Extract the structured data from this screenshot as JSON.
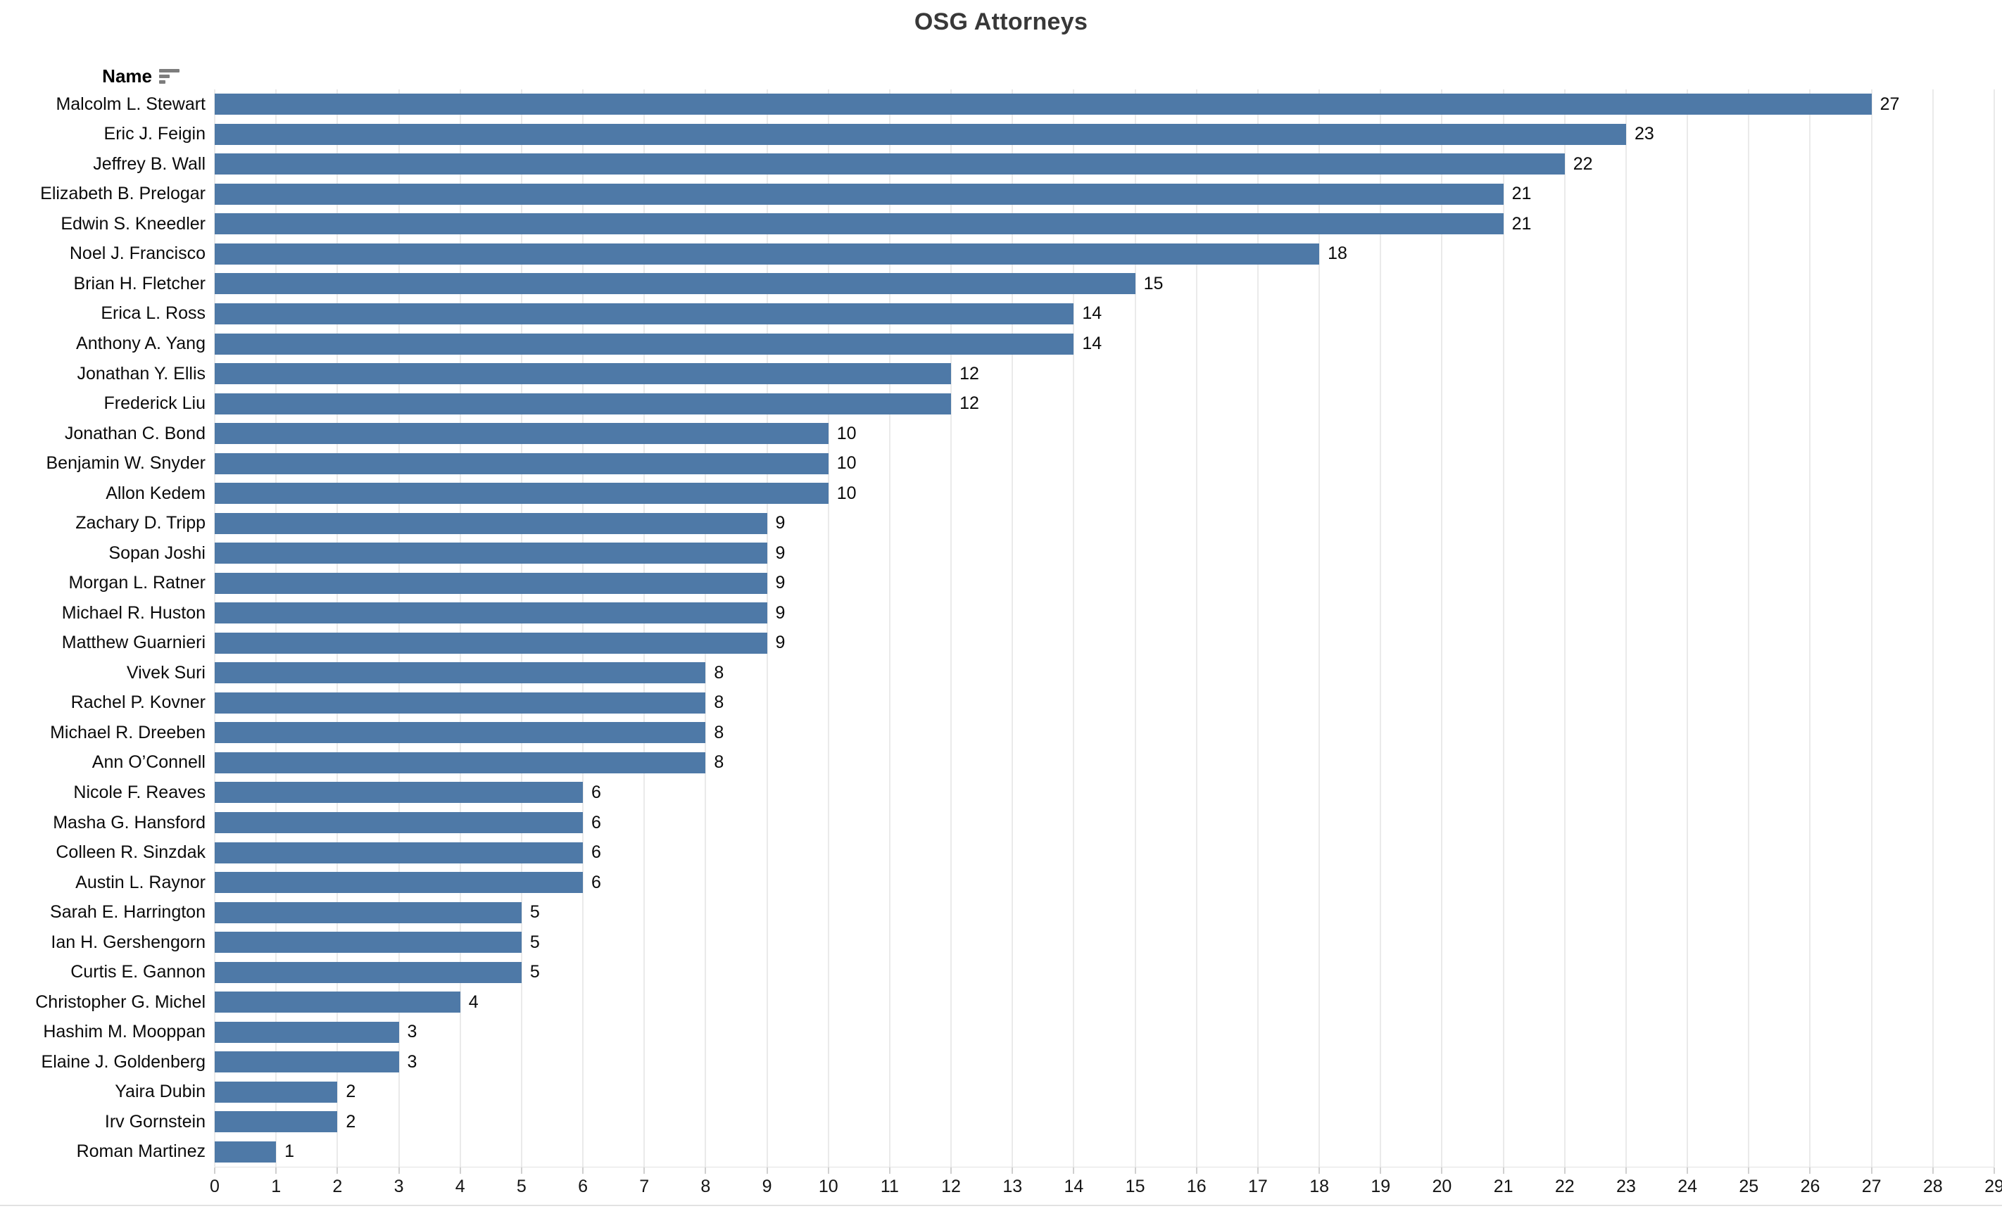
{
  "title": "OSG Attorneys",
  "header": {
    "name_label": "Name",
    "sort_icon": "sort-descending-icon"
  },
  "colors": {
    "bar": "#4e79a7",
    "gridline": "#eaeaea",
    "tick": "#cfcfcf",
    "title_text": "#383838",
    "label_text": "#0b0b0b",
    "divider": "#e2e2e2"
  },
  "chart_data": {
    "type": "bar",
    "orientation": "horizontal",
    "title": "OSG Attorneys",
    "xlabel": "",
    "ylabel": "Name",
    "grid": true,
    "value_labels": true,
    "legend": "none",
    "xlim": [
      0,
      29
    ],
    "x_ticks": [
      0,
      1,
      2,
      3,
      4,
      5,
      6,
      7,
      8,
      9,
      10,
      11,
      12,
      13,
      14,
      15,
      16,
      17,
      18,
      19,
      20,
      21,
      22,
      23,
      24,
      25,
      26,
      27,
      28,
      29
    ],
    "bar_color": "#4e79a7",
    "categories": [
      "Malcolm L. Stewart",
      "Eric J. Feigin",
      "Jeffrey B. Wall",
      "Elizabeth B. Prelogar",
      "Edwin S. Kneedler",
      "Noel J. Francisco",
      "Brian H. Fletcher",
      "Erica L. Ross",
      "Anthony A. Yang",
      "Jonathan Y. Ellis",
      "Frederick Liu",
      "Jonathan C. Bond",
      "Benjamin W. Snyder",
      "Allon Kedem",
      "Zachary D. Tripp",
      "Sopan Joshi",
      "Morgan L. Ratner",
      "Michael R. Huston",
      "Matthew Guarnieri",
      "Vivek Suri",
      "Rachel P. Kovner",
      "Michael R. Dreeben",
      "Ann O’Connell",
      "Nicole F. Reaves",
      "Masha G. Hansford",
      "Colleen R. Sinzdak",
      "Austin L. Raynor",
      "Sarah E. Harrington",
      "Ian H. Gershengorn",
      "Curtis E. Gannon",
      "Christopher G. Michel",
      "Hashim M. Mooppan",
      "Elaine J. Goldenberg",
      "Yaira Dubin",
      "Irv Gornstein",
      "Roman Martinez"
    ],
    "values": [
      27,
      23,
      22,
      21,
      21,
      18,
      15,
      14,
      14,
      12,
      12,
      10,
      10,
      10,
      9,
      9,
      9,
      9,
      9,
      8,
      8,
      8,
      8,
      6,
      6,
      6,
      6,
      5,
      5,
      5,
      4,
      3,
      3,
      2,
      2,
      1
    ]
  }
}
